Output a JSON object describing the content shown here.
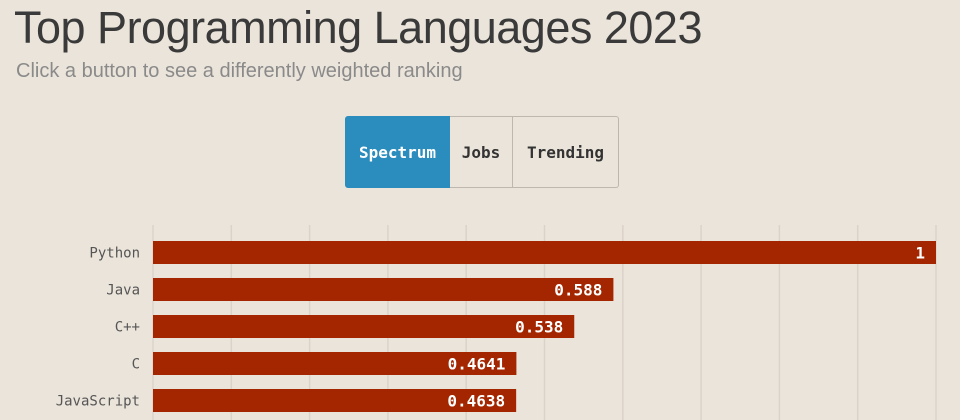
{
  "header": {
    "title": "Top Programming Languages 2023",
    "subtitle": "Click a button to see a differently weighted ranking"
  },
  "buttons": [
    {
      "label": "Spectrum",
      "active": true
    },
    {
      "label": "Jobs",
      "active": false
    },
    {
      "label": "Trending",
      "active": false
    }
  ],
  "colors": {
    "bar": "#a32600",
    "active_button": "#2b8cbe",
    "background": "#ebe4da",
    "grid": "#d9d3ca"
  },
  "chart_data": {
    "type": "bar",
    "orientation": "horizontal",
    "categories": [
      "Python",
      "Java",
      "C++",
      "C",
      "JavaScript"
    ],
    "values": [
      1,
      0.588,
      0.538,
      0.4641,
      0.4638
    ],
    "value_labels": [
      "1",
      "0.588",
      "0.538",
      "0.4641",
      "0.4638"
    ],
    "xlim": [
      0,
      1
    ],
    "grid": true
  }
}
